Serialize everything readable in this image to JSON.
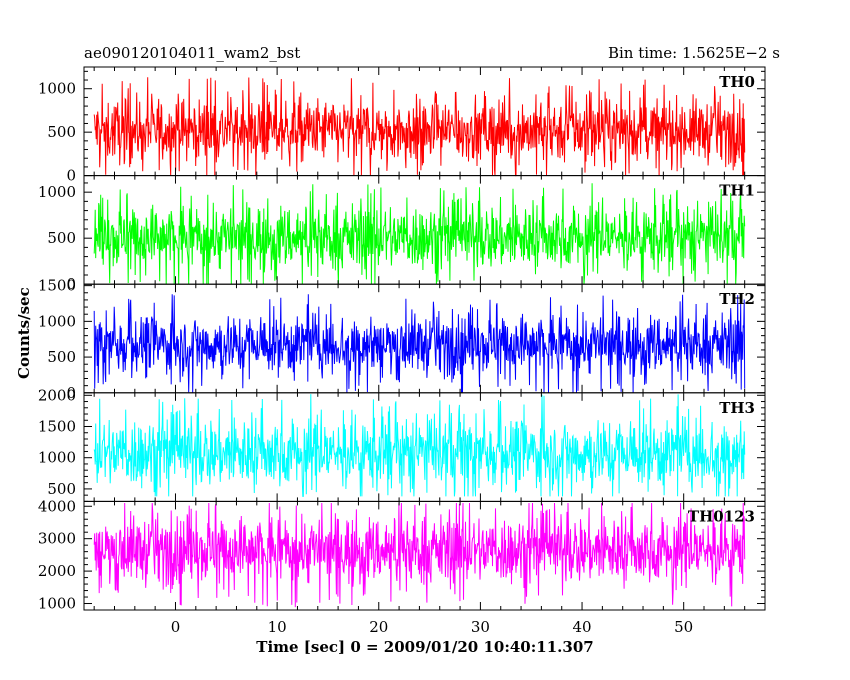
{
  "chart_data": {
    "type": "line",
    "title": "ae090120104011_wam2_bst",
    "subtitle": "Bin time: 1.5625E−2 s",
    "xlabel": "Time [sec] 0 = 2009/01/20 10:40:11.307",
    "ylabel": "Counts/sec",
    "xlim": [
      -9,
      58
    ],
    "xticks": [
      "0",
      "10",
      "20",
      "30",
      "40",
      "50"
    ],
    "grid": false,
    "panels": [
      {
        "name": "TH0",
        "color": "#ff0000",
        "ylim": [
          0,
          1250
        ],
        "yticks": [
          "0",
          "500",
          "1000"
        ],
        "mean": 520,
        "noise": 180,
        "floor": 0,
        "ceil": 1250
      },
      {
        "name": "TH1",
        "color": "#00ff00",
        "ylim": [
          0,
          1180
        ],
        "yticks": [
          "0",
          "500",
          "1000"
        ],
        "mean": 510,
        "noise": 175,
        "floor": 0,
        "ceil": 1180
      },
      {
        "name": "TH2",
        "color": "#0000ff",
        "ylim": [
          0,
          1520
        ],
        "yticks": [
          "0",
          "500",
          "1000",
          "1500"
        ],
        "mean": 680,
        "noise": 210,
        "floor": 0,
        "ceil": 1500
      },
      {
        "name": "TH3",
        "color": "#00ffff",
        "ylim": [
          300,
          2040
        ],
        "yticks": [
          "500",
          "1000",
          "1500",
          "2000"
        ],
        "mean": 1080,
        "noise": 280,
        "floor": 380,
        "ceil": 2040
      },
      {
        "name": "TH0123",
        "color": "#ff00ff",
        "ylim": [
          800,
          4150
        ],
        "yticks": [
          "1000",
          "2000",
          "3000",
          "4000"
        ],
        "mean": 2650,
        "noise": 520,
        "floor": 800,
        "ceil": 4100
      }
    ],
    "data_start": -8,
    "data_end": 56
  }
}
